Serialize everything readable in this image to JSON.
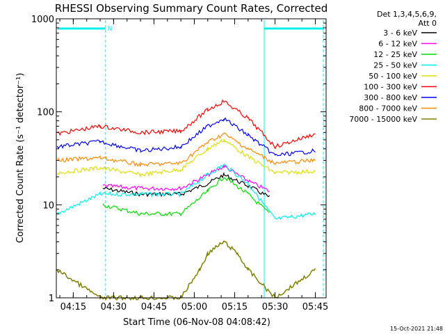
{
  "chart_data": {
    "type": "line",
    "title": "RHESSI Observing Summary Count Rates, Corrected",
    "xlabel": "Start Time (06-Nov-08 04:08:42)",
    "ylabel": "Corrected Count Rate (s⁻¹ detector⁻¹)",
    "ylog": true,
    "ylim": [
      1,
      1000
    ],
    "xlim": [
      "04:08:42",
      "05:49:00"
    ],
    "y_ticks": [
      {
        "value": 1,
        "label": "1"
      },
      {
        "value": 10,
        "label": "10"
      },
      {
        "value": 100,
        "label": "100"
      },
      {
        "value": 1000,
        "label": "1000"
      }
    ],
    "x_ticks": [
      {
        "value": "04:15",
        "label": "04:15"
      },
      {
        "value": "04:30",
        "label": "04:30"
      },
      {
        "value": "04:45",
        "label": "04:45"
      },
      {
        "value": "05:00",
        "label": "05:00"
      },
      {
        "value": "05:15",
        "label": "05:15"
      },
      {
        "value": "05:30",
        "label": "05:30"
      },
      {
        "value": "05:45",
        "label": "05:45"
      }
    ],
    "legend_header": [
      "Det 1,3,4,5,6,9,",
      "Att 0"
    ],
    "legend_position": "right",
    "series": [
      {
        "name": "3 - 6 keV",
        "color": "#000000",
        "x": [
          "04:26:00",
          "04:40:00",
          "04:55:00",
          "05:05:00",
          "05:11:00",
          "05:20:00",
          "05:28:00"
        ],
        "y": [
          15,
          13,
          13,
          17,
          21,
          16,
          12
        ]
      },
      {
        "name": "6 - 12 keV",
        "color": "#ff00ff",
        "x": [
          "04:26:00",
          "04:40:00",
          "04:55:00",
          "05:05:00",
          "05:11:00",
          "05:20:00",
          "05:28:00"
        ],
        "y": [
          16,
          15,
          15,
          21,
          26,
          18,
          14
        ]
      },
      {
        "name": "12 - 25 keV",
        "color": "#00dd00",
        "x": [
          "04:26:00",
          "04:40:00",
          "04:55:00",
          "05:05:00",
          "05:11:00",
          "05:20:00",
          "05:28:00"
        ],
        "y": [
          10,
          8,
          8,
          14,
          20,
          13,
          8
        ]
      },
      {
        "name": "25 - 50 keV",
        "color": "#00eeee",
        "x": [
          "04:09:00",
          "04:25:00",
          "04:40:00",
          "04:55:00",
          "05:05:00",
          "05:11:00",
          "05:20:00",
          "05:30:00",
          "05:45:00"
        ],
        "y": [
          8,
          13,
          13,
          13,
          21,
          27,
          17,
          7,
          8
        ]
      },
      {
        "name": "50 - 100 keV",
        "color": "#dddd00",
        "x": [
          "04:09:00",
          "04:25:00",
          "04:40:00",
          "04:55:00",
          "05:05:00",
          "05:11:00",
          "05:20:00",
          "05:30:00",
          "05:45:00"
        ],
        "y": [
          22,
          25,
          21,
          24,
          40,
          50,
          33,
          22,
          23
        ]
      },
      {
        "name": "100 - 300 keV",
        "color": "#ff0000",
        "x": [
          "04:09:00",
          "04:25:00",
          "04:40:00",
          "04:55:00",
          "05:05:00",
          "05:11:00",
          "05:20:00",
          "05:30:00",
          "05:45:00"
        ],
        "y": [
          58,
          70,
          60,
          62,
          105,
          130,
          85,
          42,
          58
        ]
      },
      {
        "name": "300 - 800 keV",
        "color": "#0000ff",
        "x": [
          "04:09:00",
          "04:25:00",
          "04:40:00",
          "04:55:00",
          "05:05:00",
          "05:11:00",
          "05:20:00",
          "05:30:00",
          "05:45:00"
        ],
        "y": [
          42,
          48,
          38,
          42,
          70,
          85,
          56,
          34,
          38
        ]
      },
      {
        "name": "800 - 7000 keV",
        "color": "#ff8800",
        "x": [
          "04:09:00",
          "04:25:00",
          "04:40:00",
          "04:55:00",
          "05:05:00",
          "05:11:00",
          "05:20:00",
          "05:30:00",
          "05:45:00"
        ],
        "y": [
          30,
          32,
          27,
          28,
          47,
          58,
          40,
          28,
          30
        ]
      },
      {
        "name": "7000 - 15000 keV",
        "color": "#808000",
        "x": [
          "04:09:00",
          "04:25:00",
          "04:40:00",
          "04:55:00",
          "05:02:00",
          "05:05:00",
          "05:11:00",
          "05:16:00",
          "05:20:00",
          "05:30:00",
          "05:45:00"
        ],
        "y": [
          2,
          1,
          1,
          1,
          2,
          3,
          4,
          3,
          2,
          1,
          2
        ]
      }
    ],
    "annotations": [
      {
        "type": "marker",
        "x": "04:27:00",
        "label": "N"
      }
    ],
    "timestamp": "15-Oct-2021 21:48"
  }
}
